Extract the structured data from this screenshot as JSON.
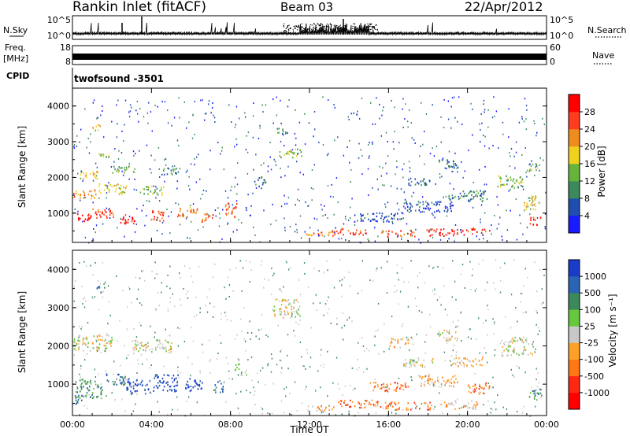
{
  "header": {
    "title": "Rankin Inlet (fitACF)",
    "beam": "Beam 03",
    "date": "22/Apr/2012"
  },
  "strips": {
    "nsky_label": "N.Sky",
    "nsky_ticks": [
      "10^5",
      "10^0"
    ],
    "nsearch_label": "N.Search",
    "nsearch_ticks": [
      "10^5",
      "10^0"
    ],
    "freq_label_1": "Freq.",
    "freq_label_2": "[MHz]",
    "freq_ticks": [
      "18",
      "8"
    ],
    "nave_label": "Nave",
    "nave_ticks": [
      "60",
      "0"
    ],
    "cpid_label": "CPID",
    "cpid_value": "twofsound -3501"
  },
  "chart_data": [
    {
      "type": "heatmap",
      "name": "power",
      "ylabel": "Slant Range [km]",
      "yticks": [
        "1000",
        "2000",
        "3000",
        "4000"
      ],
      "ylim": [
        180,
        4500
      ],
      "xlabel": "Time UT",
      "xticks": [
        "00:00",
        "04:00",
        "08:00",
        "12:00",
        "16:00",
        "20:00",
        "00:00"
      ],
      "xlim": [
        0,
        24
      ],
      "colorbar_label": "Power [dB]",
      "colorbar_ticks": [
        "4",
        "8",
        "12",
        "16",
        "20",
        "24",
        "28"
      ],
      "colorbar_colors": [
        "#1a1aff",
        "#1f4db0",
        "#3c8a5c",
        "#66b43c",
        "#f0d21e",
        "#f08c1e",
        "#ff3c1e",
        "#ff0000"
      ],
      "patches": [
        {
          "t": 0.5,
          "r": 900,
          "dt": 0.8,
          "dr": 250,
          "level": 7
        },
        {
          "t": 1.5,
          "r": 1000,
          "dt": 1.2,
          "dr": 300,
          "level": 6
        },
        {
          "t": 2.8,
          "r": 850,
          "dt": 1.0,
          "dr": 250,
          "level": 7
        },
        {
          "t": 4.2,
          "r": 950,
          "dt": 0.8,
          "dr": 300,
          "level": 6
        },
        {
          "t": 5.8,
          "r": 1050,
          "dt": 1.0,
          "dr": 300,
          "level": 5
        },
        {
          "t": 6.8,
          "r": 900,
          "dt": 0.6,
          "dr": 250,
          "level": 6
        },
        {
          "t": 0.6,
          "r": 1550,
          "dt": 1.2,
          "dr": 250,
          "level": 5
        },
        {
          "t": 2.0,
          "r": 1700,
          "dt": 1.4,
          "dr": 300,
          "level": 4
        },
        {
          "t": 4.0,
          "r": 1650,
          "dt": 1.2,
          "dr": 250,
          "level": 3
        },
        {
          "t": 0.8,
          "r": 2100,
          "dt": 1.0,
          "dr": 250,
          "level": 4
        },
        {
          "t": 2.6,
          "r": 2250,
          "dt": 1.2,
          "dr": 200,
          "level": 3
        },
        {
          "t": 5.0,
          "r": 2200,
          "dt": 1.0,
          "dr": 200,
          "level": 2
        },
        {
          "t": 1.6,
          "r": 2650,
          "dt": 0.6,
          "dr": 200,
          "level": 3
        },
        {
          "t": 1.2,
          "r": 3400,
          "dt": 0.4,
          "dr": 200,
          "level": 4
        },
        {
          "t": 8.0,
          "r": 1100,
          "dt": 0.6,
          "dr": 400,
          "level": 6
        },
        {
          "t": 11.0,
          "r": 2700,
          "dt": 1.2,
          "dr": 250,
          "level": 3
        },
        {
          "t": 10.6,
          "r": 3300,
          "dt": 0.6,
          "dr": 200,
          "level": 2
        },
        {
          "t": 9.5,
          "r": 1900,
          "dt": 0.6,
          "dr": 300,
          "level": 2
        },
        {
          "t": 12.5,
          "r": 420,
          "dt": 1.5,
          "dr": 150,
          "level": 5
        },
        {
          "t": 14.0,
          "r": 500,
          "dt": 1.8,
          "dr": 180,
          "level": 6
        },
        {
          "t": 16.5,
          "r": 450,
          "dt": 1.8,
          "dr": 180,
          "level": 6
        },
        {
          "t": 18.8,
          "r": 480,
          "dt": 2.0,
          "dr": 200,
          "level": 7
        },
        {
          "t": 20.5,
          "r": 520,
          "dt": 1.2,
          "dr": 160,
          "level": 6
        },
        {
          "t": 15.5,
          "r": 900,
          "dt": 2.5,
          "dr": 250,
          "level": 1
        },
        {
          "t": 18.0,
          "r": 1200,
          "dt": 2.5,
          "dr": 300,
          "level": 1
        },
        {
          "t": 20.0,
          "r": 1500,
          "dt": 2.0,
          "dr": 300,
          "level": 2
        },
        {
          "t": 22.2,
          "r": 1900,
          "dt": 1.4,
          "dr": 350,
          "level": 3
        },
        {
          "t": 23.2,
          "r": 1300,
          "dt": 0.8,
          "dr": 400,
          "level": 4
        },
        {
          "t": 23.3,
          "r": 2300,
          "dt": 0.6,
          "dr": 200,
          "level": 3
        },
        {
          "t": 23.4,
          "r": 800,
          "dt": 0.6,
          "dr": 250,
          "level": 6
        },
        {
          "t": 19.0,
          "r": 2400,
          "dt": 1.0,
          "dr": 250,
          "level": 2
        },
        {
          "t": 17.5,
          "r": 1900,
          "dt": 1.2,
          "dr": 200,
          "level": 1
        }
      ]
    },
    {
      "type": "heatmap",
      "name": "velocity",
      "ylabel": "Slant Range [km]",
      "yticks": [
        "1000",
        "2000",
        "3000",
        "4000"
      ],
      "ylim": [
        180,
        4500
      ],
      "xlabel": "Time UT",
      "xticks": [
        "00:00",
        "04:00",
        "08:00",
        "12:00",
        "16:00",
        "20:00",
        "00:00"
      ],
      "xlim": [
        0,
        24
      ],
      "colorbar_label": "Velocity [m s⁻¹]",
      "colorbar_ticks": [
        "1000",
        "500",
        "100",
        "25",
        "-25",
        "-100",
        "-500",
        "-1000"
      ],
      "colorbar_colors": [
        "#1a3cc8",
        "#2a64b4",
        "#3c8a5c",
        "#66c83c",
        "#c8c8c8",
        "#ffa028",
        "#ff7814",
        "#ff2814",
        "#ff0000"
      ],
      "patches": [
        {
          "t": 0.8,
          "r": 900,
          "dt": 1.4,
          "dr": 500,
          "level": 2
        },
        {
          "t": 2.2,
          "r": 1150,
          "dt": 1.0,
          "dr": 300,
          "level": 1
        },
        {
          "t": 3.3,
          "r": 950,
          "dt": 1.2,
          "dr": 400,
          "level": 0
        },
        {
          "t": 4.7,
          "r": 1050,
          "dt": 1.3,
          "dr": 450,
          "level": 0
        },
        {
          "t": 6.2,
          "r": 1000,
          "dt": 1.0,
          "dr": 350,
          "level": 0
        },
        {
          "t": 7.4,
          "r": 950,
          "dt": 0.5,
          "dr": 300,
          "level": 1
        },
        {
          "t": 1.0,
          "r": 2100,
          "dt": 2.0,
          "dr": 450,
          "level": 4
        },
        {
          "t": 4.0,
          "r": 2000,
          "dt": 2.0,
          "dr": 350,
          "level": 4
        },
        {
          "t": 8.5,
          "r": 1400,
          "dt": 0.6,
          "dr": 300,
          "level": 3
        },
        {
          "t": 0.4,
          "r": 600,
          "dt": 0.6,
          "dr": 250,
          "level": 2
        },
        {
          "t": 1.4,
          "r": 3500,
          "dt": 0.4,
          "dr": 200,
          "level": 2
        },
        {
          "t": 10.8,
          "r": 3000,
          "dt": 1.4,
          "dr": 500,
          "level": 4
        },
        {
          "t": 12.5,
          "r": 380,
          "dt": 1.5,
          "dr": 150,
          "level": 5
        },
        {
          "t": 14.5,
          "r": 500,
          "dt": 2.2,
          "dr": 200,
          "level": 6
        },
        {
          "t": 17.0,
          "r": 450,
          "dt": 2.4,
          "dr": 200,
          "level": 6
        },
        {
          "t": 19.5,
          "r": 480,
          "dt": 2.0,
          "dr": 220,
          "level": 5
        },
        {
          "t": 16.0,
          "r": 950,
          "dt": 2.0,
          "dr": 250,
          "level": 6
        },
        {
          "t": 18.5,
          "r": 1100,
          "dt": 2.0,
          "dr": 300,
          "level": 5
        },
        {
          "t": 20.5,
          "r": 900,
          "dt": 1.2,
          "dr": 300,
          "level": 6
        },
        {
          "t": 17.5,
          "r": 1600,
          "dt": 1.6,
          "dr": 250,
          "level": 4
        },
        {
          "t": 20.0,
          "r": 1600,
          "dt": 1.6,
          "dr": 250,
          "level": 5
        },
        {
          "t": 22.5,
          "r": 2000,
          "dt": 1.6,
          "dr": 500,
          "level": 4
        },
        {
          "t": 23.4,
          "r": 750,
          "dt": 0.7,
          "dr": 300,
          "level": 2
        },
        {
          "t": 19.0,
          "r": 2300,
          "dt": 1.0,
          "dr": 300,
          "level": 4
        },
        {
          "t": 16.5,
          "r": 2100,
          "dt": 1.0,
          "dr": 250,
          "level": 5
        }
      ]
    }
  ]
}
